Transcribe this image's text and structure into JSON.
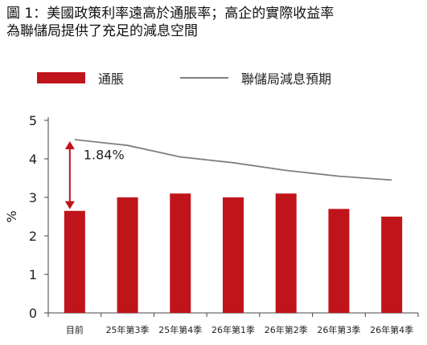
{
  "header": {
    "title_line1": "圖 1：美國政策利率遠高於通脹率；高企的實際收益率",
    "title_line2": "為聯儲局提供了充足的減息空間"
  },
  "chart_data": {
    "type": "bar",
    "categories": [
      "目前",
      "25年第3季",
      "25年第4季",
      "26年第1季",
      "26年第2季",
      "26年第3季",
      "26年第4季"
    ],
    "series": [
      {
        "name": "通脹",
        "kind": "bar",
        "color": "#c0141b",
        "values": [
          2.65,
          3.0,
          3.1,
          3.0,
          3.1,
          2.7,
          2.5
        ]
      },
      {
        "name": "聯儲局減息預期",
        "kind": "line",
        "color": "#7f7f7f",
        "values": [
          4.5,
          4.35,
          4.05,
          3.9,
          3.7,
          3.55,
          3.45
        ]
      }
    ],
    "ylabel": "%",
    "ylim": [
      0,
      5
    ],
    "yticks": [
      "0",
      "1",
      "2",
      "3",
      "4",
      "5"
    ],
    "annotation": {
      "text": "1.84%",
      "from": 2.65,
      "to": 4.5,
      "category_index": 0
    },
    "legend_position": "top-left",
    "grid": false
  }
}
